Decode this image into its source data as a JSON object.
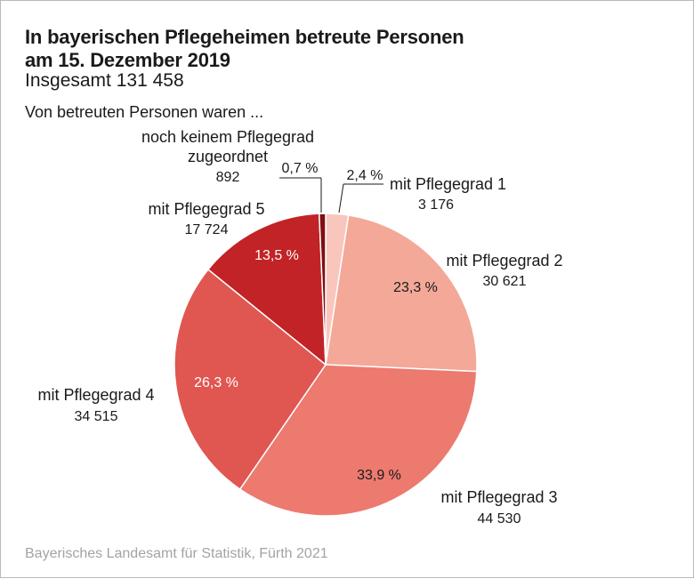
{
  "header": {
    "title_line1": "In bayerischen Pflegeheimen betreute Personen",
    "title_line2": "am 15. Dezember 2019",
    "subtitle": "Insgesamt 131 458",
    "intro": "Von betreuten Personen waren ..."
  },
  "footer": {
    "source": "Bayerisches Landesamt für Statistik, Fürth 2021"
  },
  "chart_data": {
    "type": "pie",
    "total": 131458,
    "total_label": "Insgesamt 131 458",
    "start_angle_deg": 0,
    "direction": "clockwise",
    "slices": [
      {
        "category": "mit Pflegegrad 1",
        "label_lines": [
          "mit Pflegegrad 1"
        ],
        "value": 3176,
        "value_label": "3 176",
        "percent_label": "2,4 %",
        "color": "#f9c6bd"
      },
      {
        "category": "mit Pflegegrad 2",
        "label_lines": [
          "mit Pflegegrad 2"
        ],
        "value": 30621,
        "value_label": "30 621",
        "percent_label": "23,3 %",
        "color": "#f4a898"
      },
      {
        "category": "mit Pflegegrad 3",
        "label_lines": [
          "mit Pflegegrad 3"
        ],
        "value": 44530,
        "value_label": "44 530",
        "percent_label": "33,9 %",
        "color": "#ec7a6f"
      },
      {
        "category": "mit Pflegegrad 4",
        "label_lines": [
          "mit Pflegegrad 4"
        ],
        "value": 34515,
        "value_label": "34 515",
        "percent_label": "26,3 %",
        "color": "#e05651"
      },
      {
        "category": "mit Pflegegrad 5",
        "label_lines": [
          "mit Pflegegrad 5"
        ],
        "value": 17724,
        "value_label": "17 724",
        "percent_label": "13,5 %",
        "color": "#c22326"
      },
      {
        "category": "noch keinem Pflegegrad zugeordnet",
        "label_lines": [
          "noch keinem Pflegegrad",
          "zugeordnet"
        ],
        "value": 892,
        "value_label": "892",
        "percent_label": "0,7 %",
        "color": "#7e0f12"
      }
    ],
    "legend": "none"
  }
}
